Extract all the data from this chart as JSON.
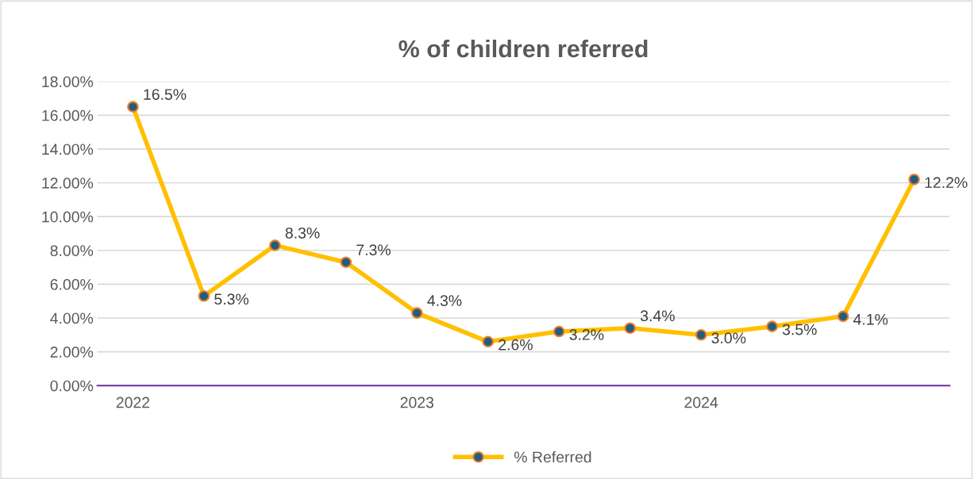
{
  "chart_data": {
    "type": "line",
    "title": "% of children referred",
    "categories": [
      "2022",
      null,
      null,
      null,
      "2023",
      null,
      null,
      null,
      "2024",
      null,
      null,
      null
    ],
    "series": [
      {
        "name": "% Referred",
        "color": "#ffc000",
        "values": [
          16.5,
          5.3,
          8.3,
          7.3,
          4.3,
          2.6,
          3.2,
          3.4,
          3.0,
          3.5,
          4.1,
          12.2
        ],
        "value_labels": [
          "16.5%",
          "5.3%",
          "8.3%",
          "7.3%",
          "4.3%",
          "2.6%",
          "3.2%",
          "3.4%",
          "3.0%",
          "3.5%",
          "4.1%",
          "12.2%"
        ]
      }
    ],
    "ylim": [
      0,
      18
    ],
    "yticks": [
      {
        "value": 0,
        "label": "0.00%"
      },
      {
        "value": 2,
        "label": "2.00%"
      },
      {
        "value": 4,
        "label": "4.00%"
      },
      {
        "value": 6,
        "label": "6.00%"
      },
      {
        "value": 8,
        "label": "8.00%"
      },
      {
        "value": 10,
        "label": "10.00%"
      },
      {
        "value": 12,
        "label": "12.00%"
      },
      {
        "value": 14,
        "label": "14.00%"
      },
      {
        "value": 16,
        "label": "16.00%"
      },
      {
        "value": 18,
        "label": "18.00%"
      }
    ],
    "grid": "y",
    "legend": "bottom",
    "marker": "circle",
    "line_style": "solid"
  }
}
